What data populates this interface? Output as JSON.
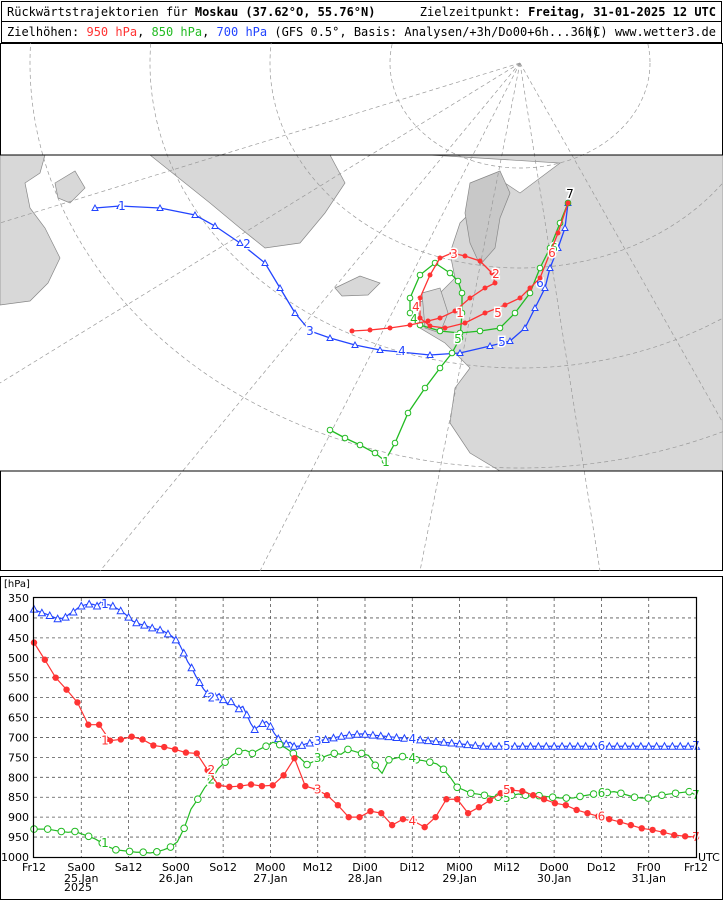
{
  "header": {
    "title_prefix": "Rückwärtstrajektorien für",
    "location": "Moskau (37.62°O, 55.76°N)",
    "target_label": "Zielzeitpunkt:",
    "target_time": "Freitag, 31-01-2025  12 UTC",
    "levels_label": "Zielhöhen:",
    "level_950": "950 hPa",
    "level_850": "850 hPa",
    "level_700": "700 hPa",
    "model_info": "(GFS 0.5°, Basis: Analysen/+3h/Do00+6h...36h)",
    "copyright": "(C) www.wetter3.de"
  },
  "colors": {
    "950": "#ff3333",
    "850": "#22bb22",
    "700": "#2244ff"
  },
  "map_labels": {
    "blue": [
      "1",
      "2",
      "3",
      "4",
      "5",
      "6",
      "7"
    ],
    "red": [
      "1",
      "2",
      "3",
      "4",
      "5",
      "6",
      "7"
    ],
    "green": [
      "1",
      "2",
      "3",
      "4",
      "5",
      "6",
      "7"
    ]
  },
  "chart_data": {
    "type": "line",
    "ylabel": "[hPa]",
    "xunit": "UTC",
    "ylim": [
      1000,
      350
    ],
    "yticks": [
      350,
      400,
      450,
      500,
      550,
      600,
      650,
      700,
      750,
      800,
      850,
      900,
      950,
      1000
    ],
    "x_range": [
      0,
      168
    ],
    "x_ticks": [
      {
        "h": 0,
        "label": "Fr12",
        "date": ""
      },
      {
        "h": 12,
        "label": "Sa00",
        "date": "25.Jan"
      },
      {
        "h": 24,
        "label": "Sa12",
        "date": ""
      },
      {
        "h": 36,
        "label": "So00",
        "date": "26.Jan"
      },
      {
        "h": 48,
        "label": "So12",
        "date": ""
      },
      {
        "h": 60,
        "label": "Mo00",
        "date": "27.Jan"
      },
      {
        "h": 72,
        "label": "Mo12",
        "date": ""
      },
      {
        "h": 84,
        "label": "Di00",
        "date": "28.Jan"
      },
      {
        "h": 96,
        "label": "Di12",
        "date": ""
      },
      {
        "h": 108,
        "label": "Mi00",
        "date": "29.Jan"
      },
      {
        "h": 120,
        "label": "Mi12",
        "date": ""
      },
      {
        "h": 132,
        "label": "Do00",
        "date": "30.Jan"
      },
      {
        "h": 144,
        "label": "Do12",
        "date": ""
      },
      {
        "h": 156,
        "label": "Fr00",
        "date": "31.Jan"
      },
      {
        "h": 168,
        "label": "Fr12",
        "date": ""
      }
    ],
    "year_label": "2025",
    "series": [
      {
        "name": "700 hPa",
        "key": "700",
        "marker": "triangle",
        "values": [
          378,
          383,
          387,
          390,
          394,
          398,
          402,
          401,
          398,
          390,
          385,
          376,
          370,
          367,
          365,
          366,
          370,
          360,
          365,
          367,
          370,
          376,
          382,
          389,
          398,
          408,
          412,
          416,
          418,
          422,
          425,
          428,
          430,
          434,
          440,
          446,
          455,
          468,
          488,
          510,
          525,
          545,
          562,
          578,
          590,
          600,
          598,
          590,
          605,
          615,
          610,
          620,
          628,
          622,
          643,
          665,
          680,
          672,
          665,
          660,
          672,
          690,
          703,
          713,
          716,
          712,
          722,
          722,
          720,
          716,
          714,
          712,
          709,
          707,
          705,
          703,
          701,
          699,
          697,
          695,
          694,
          693,
          692,
          691,
          692,
          693,
          694,
          695,
          696,
          697,
          698,
          699,
          700,
          701,
          702,
          703,
          704,
          705,
          706,
          707,
          708,
          709,
          710,
          711,
          712,
          713,
          714,
          715,
          716,
          717,
          718,
          719,
          720,
          721,
          722,
          722,
          722,
          722,
          722,
          722,
          722,
          722,
          722,
          722,
          722,
          722,
          722,
          722,
          722,
          722,
          722,
          722,
          722,
          722,
          722,
          722,
          722,
          722,
          722,
          722,
          722,
          722,
          722,
          722,
          722,
          722,
          722,
          722,
          722,
          722,
          722,
          722,
          722,
          722,
          722,
          722,
          722,
          722,
          722,
          722,
          722,
          722,
          722,
          722,
          722,
          722,
          722,
          722,
          722
        ],
        "labels": [
          {
            "h": 18,
            "text": "1"
          },
          {
            "h": 45,
            "text": "2"
          },
          {
            "h": 72,
            "text": "3"
          },
          {
            "h": 96,
            "text": "4"
          },
          {
            "h": 120,
            "text": "5"
          },
          {
            "h": 144,
            "text": "6"
          },
          {
            "h": 168,
            "text": "7"
          }
        ]
      },
      {
        "name": "850 hPa",
        "key": "850",
        "marker": "circle",
        "values": [
          930,
          930,
          930,
          933,
          936,
          938,
          936,
          942,
          948,
          955,
          965,
          975,
          982,
          984,
          986,
          988,
          988,
          990,
          987,
          982,
          975,
          962,
          928,
          880,
          855,
          826,
          806,
          778,
          762,
          745,
          735,
          732,
          740,
          730,
          722,
          712,
          718,
          728,
          740,
          752,
          768,
          760,
          752,
          745,
          740,
          742,
          730,
          735,
          740,
          745,
          770,
          790,
          756,
          752,
          748,
          752,
          756,
          758,
          762,
          766,
          780,
          800,
          825,
          832,
          840,
          842,
          845,
          848,
          850,
          852,
          845,
          842,
          845,
          848,
          846,
          848,
          850,
          852,
          852,
          852,
          848,
          845,
          842,
          840,
          838,
          836,
          840,
          845,
          850,
          852,
          852,
          848,
          845,
          842,
          840,
          838,
          836,
          845
        ],
        "labels": [
          {
            "h": 18,
            "text": "1"
          },
          {
            "h": 45,
            "text": "2"
          },
          {
            "h": 72,
            "text": "3"
          },
          {
            "h": 96,
            "text": "4"
          },
          {
            "h": 120,
            "text": "5"
          },
          {
            "h": 144,
            "text": "6"
          },
          {
            "h": 168,
            "text": "7"
          }
        ]
      },
      {
        "name": "950 hPa",
        "key": "950",
        "marker": "dot",
        "values": [
          462,
          505,
          550,
          580,
          612,
          668,
          668,
          708,
          705,
          698,
          705,
          720,
          724,
          730,
          738,
          740,
          782,
          820,
          824,
          822,
          818,
          822,
          820,
          795,
          752,
          822,
          830,
          845,
          870,
          900,
          900,
          885,
          890,
          920,
          905,
          910,
          925,
          900,
          855,
          855,
          890,
          875,
          858,
          840,
          832,
          835,
          845,
          855,
          865,
          870,
          882,
          890,
          898,
          905,
          912,
          920,
          928,
          932,
          938,
          945,
          948,
          950
        ],
        "labels": [
          {
            "h": 18,
            "text": "1"
          },
          {
            "h": 45,
            "text": "2"
          },
          {
            "h": 72,
            "text": "3"
          },
          {
            "h": 96,
            "text": "4"
          },
          {
            "h": 120,
            "text": "5"
          },
          {
            "h": 144,
            "text": "6"
          },
          {
            "h": 168,
            "text": "7"
          }
        ]
      }
    ]
  }
}
